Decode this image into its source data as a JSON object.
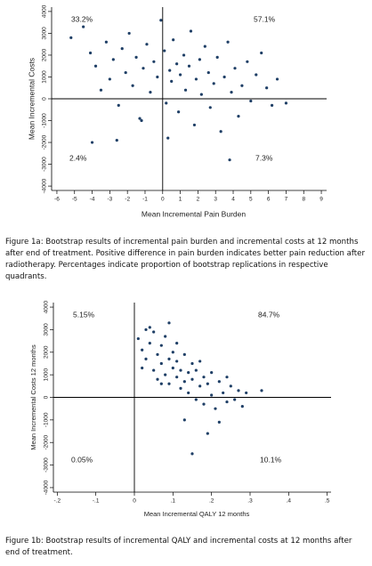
{
  "chart_data": [
    {
      "type": "scatter",
      "x_label": "Mean Incremental Pain Burden",
      "y_label": "Mean Incremental Costs",
      "caption": "Figure 1a: Bootstrap results of incremental pain burden and incremental costs at 12 months after end of treatment. Positive difference in pain burden indicates better pain reduction after radiotherapy. Percentages indicate proportion of bootstrap replications in respective quadrants.",
      "annotations": [
        "33.2%",
        "57.1%",
        "2.4%",
        "7.3%"
      ],
      "color": "#1f3f66",
      "xlim": [
        -6.3,
        9.3
      ],
      "xticks": [
        -6,
        -5,
        -4,
        -3,
        -2,
        -1,
        0,
        1,
        2,
        3,
        4,
        5,
        6,
        7,
        8,
        9
      ],
      "ylim": [
        -4200,
        4200
      ],
      "yticks": [
        -4000,
        -3000,
        -2000,
        -1000,
        0,
        1000,
        2000,
        3000,
        4000
      ],
      "x": [
        -5.2,
        -4.5,
        -4.1,
        -3.8,
        -3.5,
        -3.2,
        -3.0,
        -2.8,
        -2.5,
        -2.3,
        -2.1,
        -1.9,
        -1.7,
        -1.5,
        -1.3,
        -1.1,
        -0.9,
        -0.7,
        -0.5,
        -0.3,
        -0.1,
        0.1,
        0.2,
        0.4,
        0.5,
        0.6,
        0.8,
        0.9,
        1.0,
        1.2,
        1.3,
        1.5,
        1.6,
        1.8,
        1.9,
        2.1,
        2.2,
        2.4,
        2.6,
        2.7,
        2.9,
        3.1,
        3.3,
        3.5,
        3.7,
        3.9,
        4.1,
        4.3,
        4.5,
        4.8,
        5.0,
        5.3,
        5.6,
        5.9,
        6.2,
        6.5,
        7.0,
        -4.0,
        -2.6,
        3.8,
        0.3,
        -1.2
      ],
      "values": [
        2800,
        3300,
        2100,
        1500,
        400,
        2600,
        900,
        1800,
        -300,
        2300,
        1200,
        3000,
        600,
        1900,
        -900,
        1400,
        2500,
        300,
        1700,
        1000,
        3600,
        2200,
        -200,
        1300,
        800,
        2700,
        1600,
        -600,
        1100,
        2000,
        400,
        1500,
        3100,
        -1200,
        900,
        1800,
        200,
        2400,
        1200,
        -400,
        700,
        1900,
        -1500,
        1000,
        2600,
        300,
        1400,
        -800,
        600,
        1700,
        -100,
        1100,
        2100,
        500,
        -300,
        900,
        -200,
        -2000,
        -1900,
        -2800,
        -1800,
        -1000
      ]
    },
    {
      "type": "scatter",
      "x_label": "Mean Incremental QALY 12 months",
      "y_label": "Mean Incremental Costs 12 months",
      "caption": "Figure 1b: Bootstrap results of incremental QALY and incremental costs at 12 months after end of treatment.",
      "annotations": [
        "5.15%",
        "84.7%",
        "0.05%",
        "10.1%"
      ],
      "color": "#1f3f66",
      "xlim": [
        -0.21,
        0.51
      ],
      "xticks": [
        {
          "value": -0.2,
          "label": "-.2"
        },
        {
          "value": -0.1,
          "label": "-.1"
        },
        0,
        {
          "value": 0.1,
          "label": ".1"
        },
        {
          "value": 0.2,
          "label": ".2"
        },
        {
          "value": 0.3,
          "label": ".3"
        },
        {
          "value": 0.4,
          "label": ".4"
        },
        {
          "value": 0.5,
          "label": ".5"
        }
      ],
      "ylim": [
        -4200,
        4200
      ],
      "yticks": [
        -4000,
        -3000,
        -2000,
        -1000,
        0,
        1000,
        2000,
        3000,
        4000
      ],
      "x": [
        0.01,
        0.02,
        0.03,
        0.03,
        0.04,
        0.05,
        0.05,
        0.06,
        0.06,
        0.07,
        0.07,
        0.08,
        0.08,
        0.09,
        0.09,
        0.1,
        0.1,
        0.11,
        0.11,
        0.12,
        0.12,
        0.13,
        0.13,
        0.14,
        0.14,
        0.15,
        0.15,
        0.16,
        0.16,
        0.17,
        0.18,
        0.18,
        0.19,
        0.2,
        0.2,
        0.21,
        0.22,
        0.23,
        0.24,
        0.25,
        0.26,
        0.27,
        0.28,
        0.29,
        0.33,
        0.09,
        0.04,
        0.13,
        0.19,
        0.15,
        0.22,
        0.02,
        0.11,
        0.17,
        0.07,
        0.24
      ],
      "values": [
        2600,
        2100,
        3000,
        1700,
        2400,
        1200,
        2900,
        1900,
        800,
        2300,
        1500,
        1000,
        2700,
        1700,
        600,
        1300,
        2000,
        900,
        1600,
        400,
        1200,
        1900,
        700,
        1100,
        200,
        1500,
        800,
        -100,
        1200,
        500,
        900,
        -300,
        600,
        1100,
        100,
        -500,
        700,
        200,
        -200,
        500,
        -100,
        300,
        -400,
        200,
        300,
        3300,
        3100,
        -1000,
        -1600,
        -2500,
        -1100,
        1300,
        2400,
        1600,
        600,
        900
      ]
    }
  ]
}
